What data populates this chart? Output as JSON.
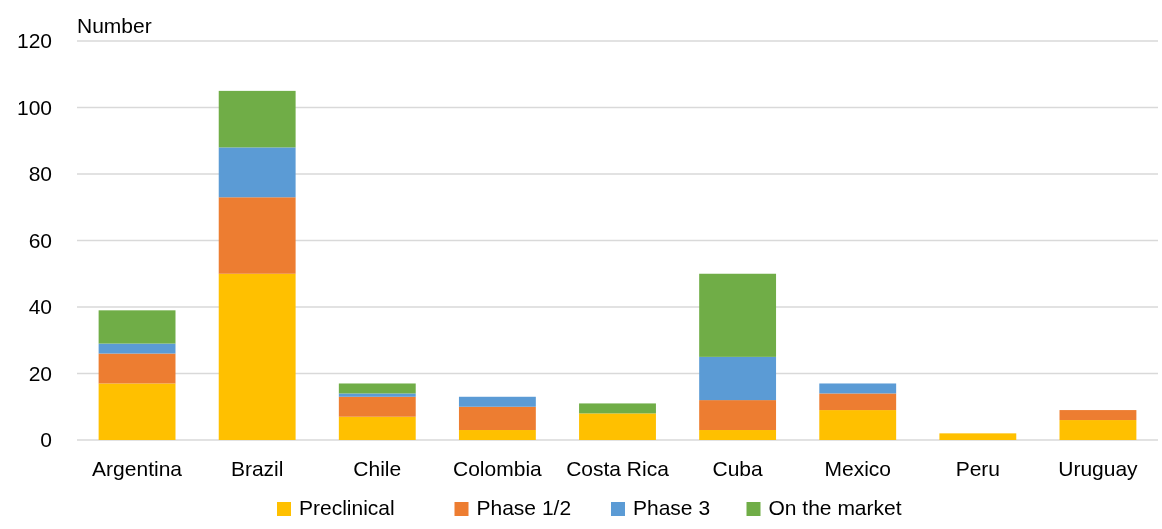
{
  "chart_data": {
    "type": "bar",
    "stacked": true,
    "ylabel": "Number",
    "categories": [
      "Argentina",
      "Brazil",
      "Chile",
      "Colombia",
      "Costa Rica",
      "Cuba",
      "Mexico",
      "Peru",
      "Uruguay"
    ],
    "series": [
      {
        "name": "Preclinical",
        "color": "#ffc000",
        "values": [
          17,
          50,
          7,
          3,
          8,
          3,
          9,
          2,
          6
        ]
      },
      {
        "name": "Phase 1/2",
        "color": "#ed7d31",
        "values": [
          9,
          23,
          6,
          7,
          0,
          9,
          5,
          0,
          3
        ]
      },
      {
        "name": "Phase 3",
        "color": "#5b9bd5",
        "values": [
          3,
          15,
          1,
          3,
          0,
          13,
          3,
          0,
          0
        ]
      },
      {
        "name": "On the market",
        "color": "#70ad47",
        "values": [
          10,
          17,
          3,
          0,
          3,
          25,
          0,
          0,
          0
        ]
      }
    ],
    "ylim": [
      0,
      120
    ],
    "yticks": [
      0,
      20,
      40,
      60,
      80,
      100,
      120
    ],
    "grid": "y",
    "legend": "bottom"
  }
}
